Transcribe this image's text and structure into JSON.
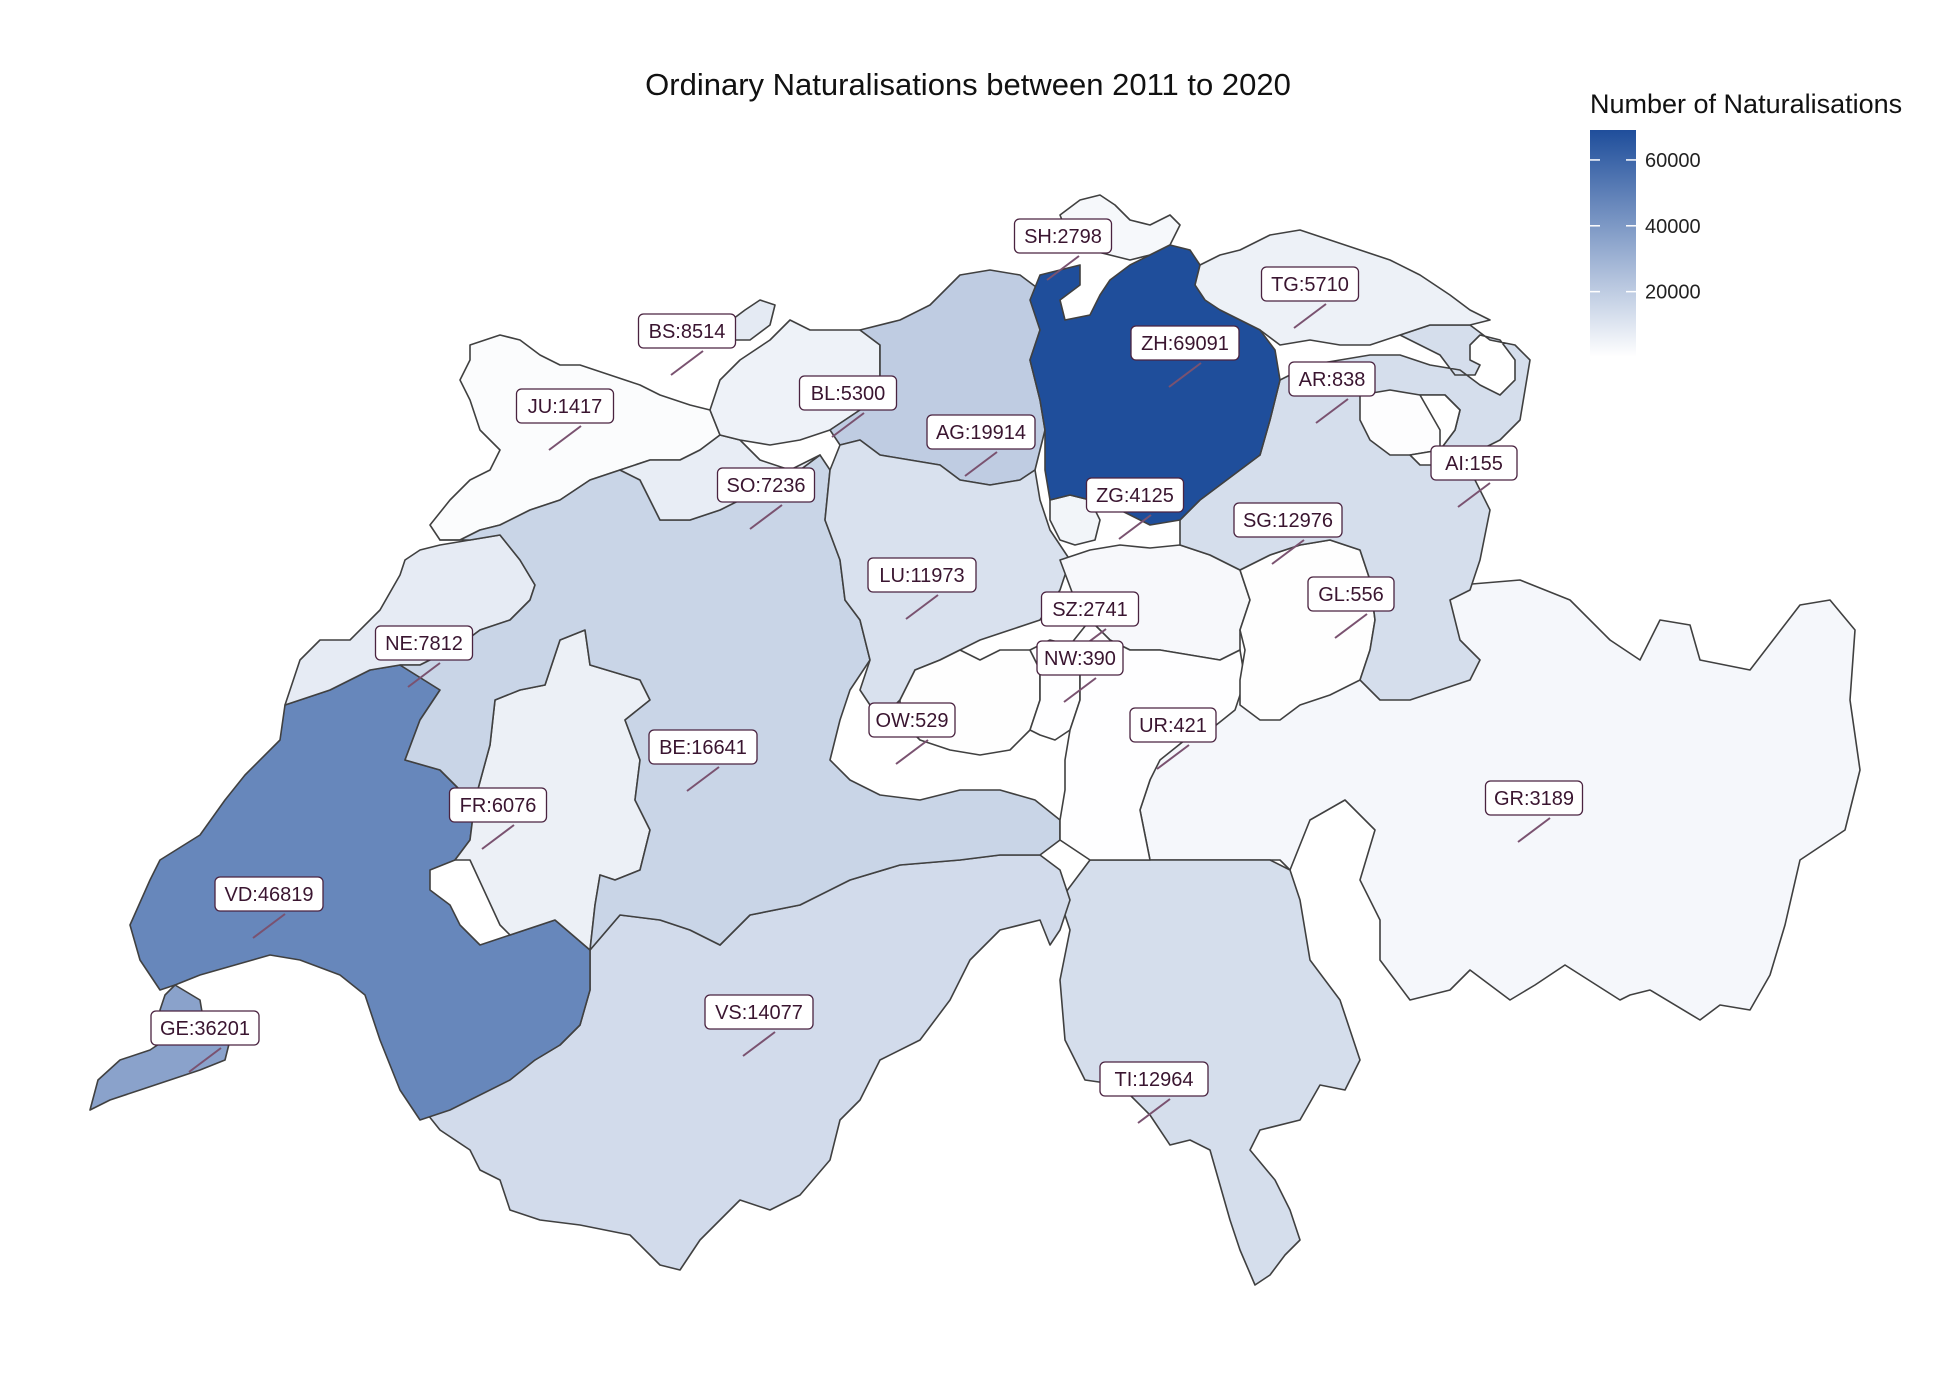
{
  "title": "Ordinary Naturalisations between 2011 to 2020",
  "legend": {
    "title": "Number of Naturalisations",
    "ticks": [
      20000,
      40000,
      60000
    ],
    "min": 155,
    "max": 69091,
    "color_low": "#ffffff",
    "color_high": "#1f4e9b"
  },
  "cantons": [
    {
      "code": "ZH",
      "label": "ZH:69091",
      "value": 69091
    },
    {
      "code": "VD",
      "label": "VD:46819",
      "value": 46819
    },
    {
      "code": "GE",
      "label": "GE:36201",
      "value": 36201
    },
    {
      "code": "AG",
      "label": "AG:19914",
      "value": 19914
    },
    {
      "code": "BE",
      "label": "BE:16641",
      "value": 16641
    },
    {
      "code": "VS",
      "label": "VS:14077",
      "value": 14077
    },
    {
      "code": "SG",
      "label": "SG:12976",
      "value": 12976
    },
    {
      "code": "TI",
      "label": "TI:12964",
      "value": 12964
    },
    {
      "code": "LU",
      "label": "LU:11973",
      "value": 11973
    },
    {
      "code": "BS",
      "label": "BS:8514",
      "value": 8514
    },
    {
      "code": "NE",
      "label": "NE:7812",
      "value": 7812
    },
    {
      "code": "SO",
      "label": "SO:7236",
      "value": 7236
    },
    {
      "code": "FR",
      "label": "FR:6076",
      "value": 6076
    },
    {
      "code": "TG",
      "label": "TG:5710",
      "value": 5710
    },
    {
      "code": "BL",
      "label": "BL:5300",
      "value": 5300
    },
    {
      "code": "ZG",
      "label": "ZG:4125",
      "value": 4125
    },
    {
      "code": "GR",
      "label": "GR:3189",
      "value": 3189
    },
    {
      "code": "SH",
      "label": "SH:2798",
      "value": 2798
    },
    {
      "code": "SZ",
      "label": "SZ:2741",
      "value": 2741
    },
    {
      "code": "JU",
      "label": "JU:1417",
      "value": 1417
    },
    {
      "code": "AR",
      "label": "AR:838",
      "value": 838
    },
    {
      "code": "GL",
      "label": "GL:556",
      "value": 556
    },
    {
      "code": "OW",
      "label": "OW:529",
      "value": 529
    },
    {
      "code": "UR",
      "label": "UR:421",
      "value": 421
    },
    {
      "code": "NW",
      "label": "NW:390",
      "value": 390
    },
    {
      "code": "AI",
      "label": "AI:155",
      "value": 155
    }
  ]
}
